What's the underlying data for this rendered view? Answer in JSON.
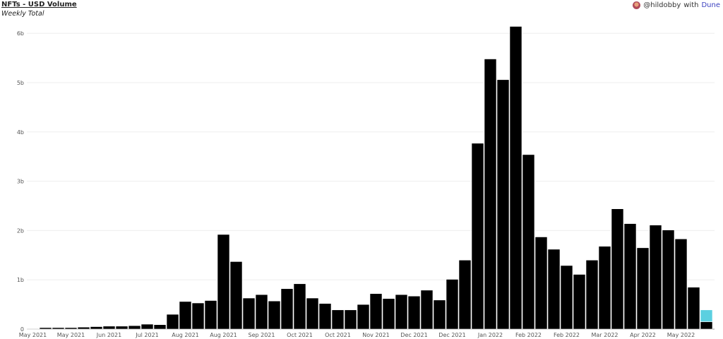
{
  "header": {
    "title": "NFTs - USD Volume",
    "subtitle": "Weekly Total",
    "credit_user": "@hildobby",
    "credit_with": "with",
    "credit_brand": "Dune"
  },
  "chart_data": {
    "type": "bar",
    "stacked": true,
    "title": "NFTs - USD Volume",
    "subtitle": "Weekly Total",
    "xlabel": "",
    "ylabel": "",
    "ylim": [
      0,
      6.2
    ],
    "y_unit": "b",
    "yticks": [
      {
        "value": 0,
        "label": "0"
      },
      {
        "value": 1,
        "label": "1b"
      },
      {
        "value": 2,
        "label": "2b"
      },
      {
        "value": 3,
        "label": "3b"
      },
      {
        "value": 4,
        "label": "4b"
      },
      {
        "value": 5,
        "label": "5b"
      },
      {
        "value": 6,
        "label": "6b"
      }
    ],
    "grid": true,
    "xtick_labels": [
      "May 2021",
      "May 2021",
      "Jun 2021",
      "Jul 2021",
      "Aug 2021",
      "Aug 2021",
      "Sep 2021",
      "Oct 2021",
      "Oct 2021",
      "Nov 2021",
      "Dec 2021",
      "Dec 2021",
      "Jan 2022",
      "Feb 2022",
      "Feb 2022",
      "Mar 2022",
      "Apr 2022",
      "May 2022"
    ],
    "xtick_every": 3,
    "series": [
      {
        "color": "#000000",
        "values": [
          0.01,
          0.03,
          0.03,
          0.03,
          0.04,
          0.05,
          0.06,
          0.06,
          0.07,
          0.1,
          0.09,
          0.3,
          0.56,
          0.53,
          0.58,
          1.92,
          1.37,
          0.63,
          0.7,
          0.57,
          0.82,
          0.92,
          0.63,
          0.52,
          0.39,
          0.39,
          0.5,
          0.72,
          0.62,
          0.7,
          0.67,
          0.79,
          0.59,
          1.01,
          1.4,
          3.77,
          5.48,
          5.06,
          6.14,
          3.54,
          1.87,
          1.62,
          1.29,
          1.11,
          1.4,
          1.68,
          2.44,
          2.14,
          1.65,
          2.11,
          2.01,
          1.83,
          0.85,
          0.15
        ]
      },
      {
        "color": "#5bd0e0",
        "values": [
          0,
          0,
          0,
          0,
          0,
          0,
          0,
          0,
          0,
          0,
          0,
          0,
          0,
          0,
          0,
          0,
          0,
          0,
          0,
          0,
          0,
          0,
          0,
          0,
          0,
          0,
          0,
          0,
          0,
          0,
          0,
          0,
          0,
          0,
          0,
          0,
          0,
          0,
          0,
          0,
          0,
          0,
          0,
          0,
          0,
          0,
          0,
          0,
          0,
          0,
          0,
          0,
          0,
          0.24
        ]
      }
    ]
  }
}
